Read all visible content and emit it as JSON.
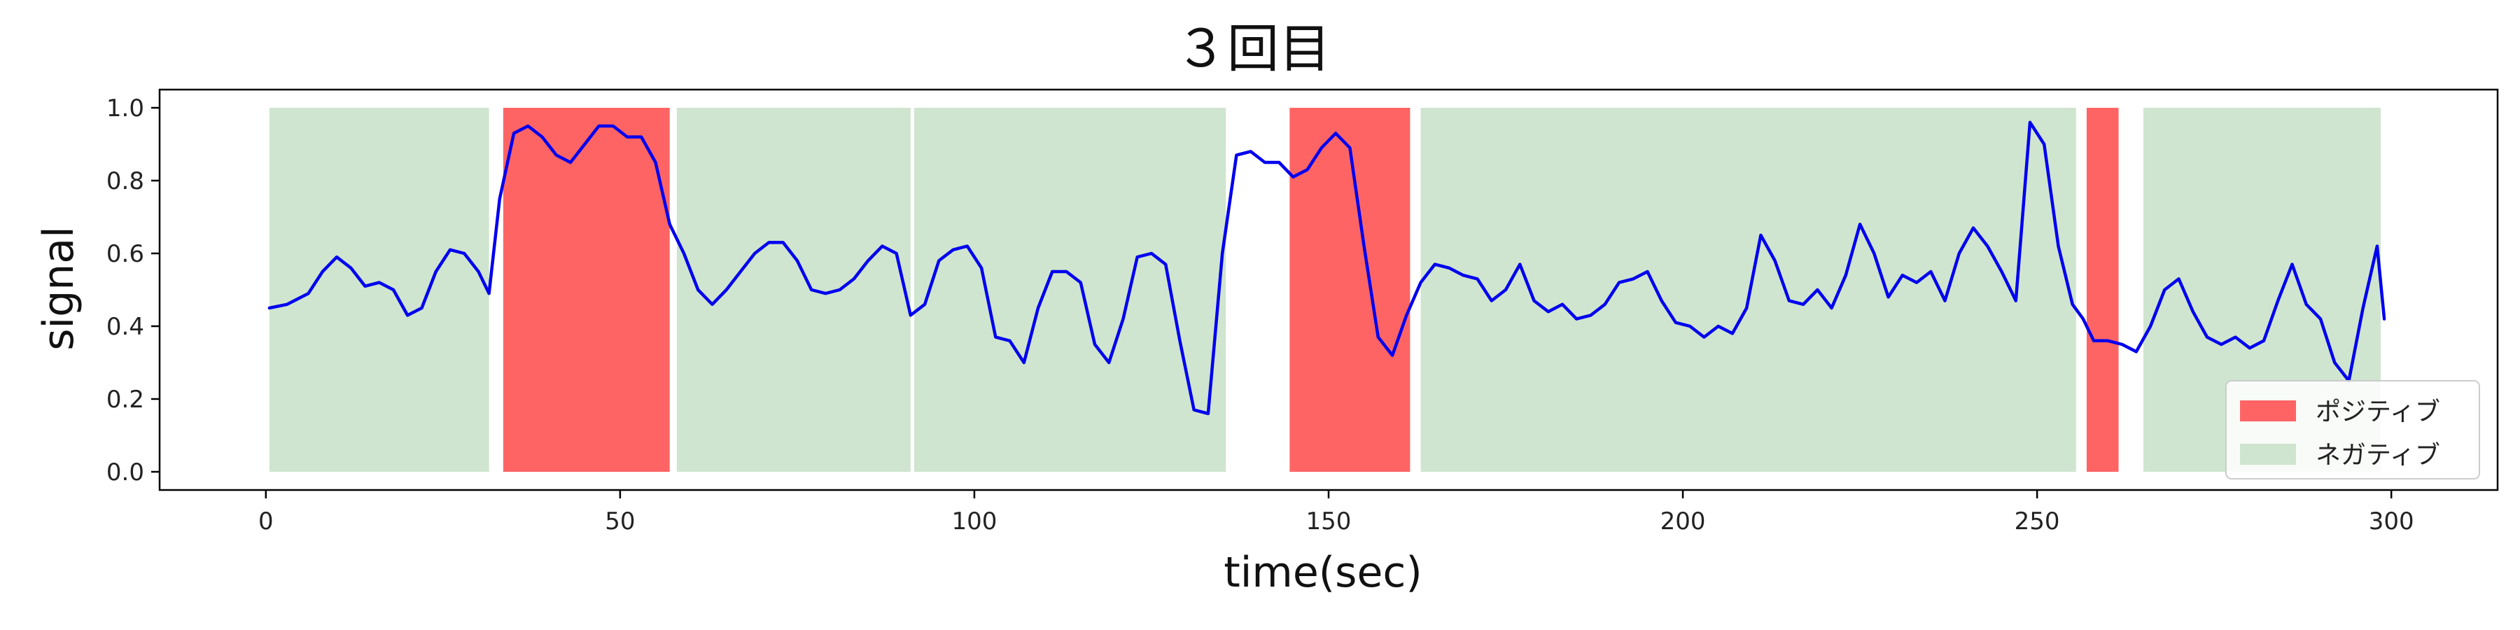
{
  "chart_data": {
    "type": "line",
    "title": "３回目",
    "xlabel": "time(sec)",
    "ylabel": "signal",
    "xlim": [
      -15,
      315
    ],
    "ylim": [
      -0.05,
      1.05
    ],
    "xticks": [
      0,
      50,
      100,
      150,
      200,
      250,
      300
    ],
    "yticks": [
      0.0,
      0.2,
      0.4,
      0.6,
      0.8,
      1.0
    ],
    "xtick_labels": [
      "0",
      "50",
      "100",
      "150",
      "200",
      "250",
      "300"
    ],
    "ytick_labels": [
      "0.0",
      "0.2",
      "0.4",
      "0.6",
      "0.8",
      "1.0"
    ],
    "grid": false,
    "legend_position": "bottom-right",
    "legend": [
      {
        "label": "ポジティブ",
        "color": "#ff6464"
      },
      {
        "label": "ネガティブ",
        "color": "#cfe5cf"
      }
    ],
    "regions": [
      {
        "kind": "negative",
        "start": 0.5,
        "end": 31.5,
        "y0": 0,
        "y1": 1
      },
      {
        "kind": "positive",
        "start": 33.5,
        "end": 57,
        "y0": 0,
        "y1": 1
      },
      {
        "kind": "negative",
        "start": 58,
        "end": 91,
        "y0": 0,
        "y1": 1
      },
      {
        "kind": "negative",
        "start": 91.5,
        "end": 135.5,
        "y0": 0,
        "y1": 1
      },
      {
        "kind": "positive",
        "start": 144.5,
        "end": 161.5,
        "y0": 0,
        "y1": 1
      },
      {
        "kind": "negative",
        "start": 163,
        "end": 255.5,
        "y0": 0,
        "y1": 1
      },
      {
        "kind": "positive",
        "start": 257,
        "end": 261.5,
        "y0": 0,
        "y1": 1
      },
      {
        "kind": "negative",
        "start": 265,
        "end": 298.5,
        "y0": 0,
        "y1": 1
      }
    ],
    "series": [
      {
        "color": "#0000ee",
        "x": [
          0.5,
          3,
          6,
          8,
          10,
          12,
          14,
          16,
          18,
          20,
          22,
          24,
          26,
          28,
          30,
          31.5,
          33,
          35,
          37,
          39,
          41,
          43,
          45,
          47,
          49,
          51,
          53,
          55,
          57,
          59,
          61,
          63,
          65,
          67,
          69,
          71,
          73,
          75,
          77,
          79,
          81,
          83,
          85,
          87,
          89,
          91,
          93,
          95,
          97,
          99,
          101,
          103,
          105,
          107,
          109,
          111,
          113,
          115,
          117,
          119,
          121,
          123,
          125,
          127,
          129,
          131,
          133,
          135,
          137,
          139,
          141,
          143,
          145,
          147,
          149,
          151,
          153,
          155,
          157,
          159,
          161,
          163,
          165,
          167,
          169,
          171,
          173,
          175,
          177,
          179,
          181,
          183,
          185,
          187,
          189,
          191,
          193,
          195,
          197,
          199,
          201,
          203,
          205,
          207,
          209,
          211,
          213,
          215,
          217,
          219,
          221,
          223,
          225,
          227,
          229,
          231,
          233,
          235,
          237,
          239,
          241,
          243,
          245,
          247,
          249,
          251,
          253,
          255,
          256.5,
          258,
          260,
          262,
          264,
          266,
          268,
          270,
          272,
          274,
          276,
          278,
          280,
          282,
          284,
          286,
          288,
          290,
          292,
          294,
          296,
          298,
          299
        ],
        "y": [
          0.45,
          0.46,
          0.49,
          0.55,
          0.59,
          0.56,
          0.51,
          0.52,
          0.5,
          0.43,
          0.45,
          0.55,
          0.61,
          0.6,
          0.55,
          0.49,
          0.75,
          0.93,
          0.95,
          0.92,
          0.87,
          0.85,
          0.9,
          0.95,
          0.95,
          0.92,
          0.92,
          0.85,
          0.68,
          0.6,
          0.5,
          0.46,
          0.5,
          0.55,
          0.6,
          0.63,
          0.63,
          0.58,
          0.5,
          0.49,
          0.5,
          0.53,
          0.58,
          0.62,
          0.6,
          0.43,
          0.46,
          0.58,
          0.61,
          0.62,
          0.56,
          0.37,
          0.36,
          0.3,
          0.45,
          0.55,
          0.55,
          0.52,
          0.35,
          0.3,
          0.42,
          0.59,
          0.6,
          0.57,
          0.36,
          0.17,
          0.16,
          0.6,
          0.87,
          0.88,
          0.85,
          0.85,
          0.81,
          0.83,
          0.89,
          0.93,
          0.89,
          0.62,
          0.37,
          0.32,
          0.43,
          0.52,
          0.57,
          0.56,
          0.54,
          0.53,
          0.47,
          0.5,
          0.57,
          0.47,
          0.44,
          0.46,
          0.42,
          0.43,
          0.46,
          0.52,
          0.53,
          0.55,
          0.47,
          0.41,
          0.4,
          0.37,
          0.4,
          0.38,
          0.45,
          0.65,
          0.58,
          0.47,
          0.46,
          0.5,
          0.45,
          0.54,
          0.68,
          0.6,
          0.48,
          0.54,
          0.52,
          0.55,
          0.47,
          0.6,
          0.67,
          0.62,
          0.55,
          0.47,
          0.96,
          0.9,
          0.62,
          0.46,
          0.42,
          0.36,
          0.36,
          0.35,
          0.33,
          0.4,
          0.5,
          0.53,
          0.44,
          0.37,
          0.35,
          0.37,
          0.34,
          0.36,
          0.47,
          0.57,
          0.46,
          0.42,
          0.3,
          0.25,
          0.45,
          0.62,
          0.42
        ]
      }
    ]
  }
}
